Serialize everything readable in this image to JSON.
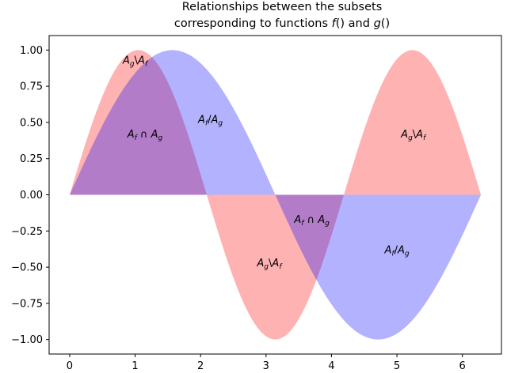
{
  "chart_data": {
    "type": "area",
    "title": [
      "Relationships between the subsets",
      "corresponding to functions f() and g()"
    ],
    "xlabel": "",
    "ylabel": "",
    "xlim": [
      -0.314,
      6.597
    ],
    "ylim": [
      -1.1,
      1.1
    ],
    "grid": false,
    "legend": "none",
    "x_ticks": [
      {
        "value": 0,
        "label": "0"
      },
      {
        "value": 1,
        "label": "1"
      },
      {
        "value": 2,
        "label": "2"
      },
      {
        "value": 3,
        "label": "3"
      },
      {
        "value": 4,
        "label": "4"
      },
      {
        "value": 5,
        "label": "5"
      },
      {
        "value": 6,
        "label": "6"
      }
    ],
    "y_ticks": [
      {
        "value": 1.0,
        "label": "1.00"
      },
      {
        "value": 0.75,
        "label": "0.75"
      },
      {
        "value": 0.5,
        "label": "0.50"
      },
      {
        "value": 0.25,
        "label": "0.25"
      },
      {
        "value": 0.0,
        "label": "0.00"
      },
      {
        "value": -0.25,
        "label": "−0.25"
      },
      {
        "value": -0.5,
        "label": "−0.50"
      },
      {
        "value": -0.75,
        "label": "−0.75"
      },
      {
        "value": -1.0,
        "label": "−1.00"
      }
    ],
    "x_range": [
      0,
      6.283
    ],
    "samples": 120,
    "series": [
      {
        "function": "sin(1.5x)",
        "color": "#ff0000",
        "alpha": 0.3
      },
      {
        "function": "sin(x)",
        "color": "#0000ff",
        "alpha": 0.3
      }
    ],
    "annotations": [
      {
        "text": "A_g\\A_f",
        "x": 1.0,
        "y": 0.93
      },
      {
        "text": "A_f ∩ A_g",
        "x": 1.15,
        "y": 0.42
      },
      {
        "text": "A_f/A_g",
        "x": 2.15,
        "y": 0.52
      },
      {
        "text": "A_f ∩ A_g",
        "x": 3.7,
        "y": -0.17
      },
      {
        "text": "A_g\\A_f",
        "x": 3.05,
        "y": -0.47
      },
      {
        "text": "A_f/A_g",
        "x": 5.0,
        "y": -0.38
      },
      {
        "text": "A_g\\A_f",
        "x": 5.25,
        "y": 0.42
      }
    ]
  }
}
